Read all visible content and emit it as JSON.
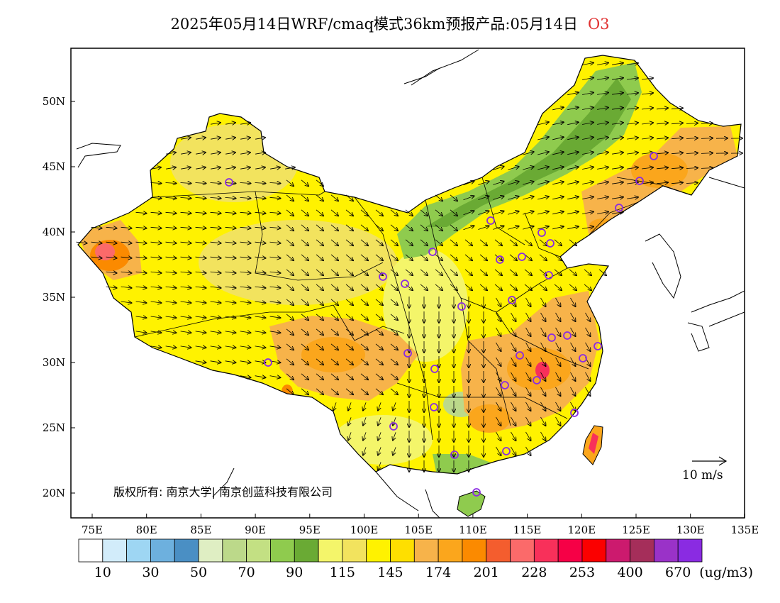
{
  "title": {
    "text": "2025年05月14日WRF/cmaq模式36km预报产品:05月14日",
    "pollutant": "O3"
  },
  "map": {
    "lat_ticks": [
      "20N",
      "25N",
      "30N",
      "35N",
      "40N",
      "45N",
      "50N"
    ],
    "lon_ticks": [
      "75E",
      "80E",
      "85E",
      "90E",
      "95E",
      "100E",
      "105E",
      "110E",
      "115E",
      "120E",
      "125E",
      "130E",
      "135E"
    ],
    "copyright": "版权所有: 南京大学| 南京创蓝科技有限公司",
    "wind_scale_label": "10  m/s"
  },
  "colorbar": {
    "unit": "(ug/m3)",
    "labels": [
      "10",
      "30",
      "50",
      "70",
      "90",
      "115",
      "145",
      "174",
      "201",
      "228",
      "253",
      "400",
      "670"
    ],
    "colors": [
      "#ffffff",
      "#d2ecfa",
      "#9ed6f3",
      "#6db0de",
      "#4a8fc4",
      "#dfeec3",
      "#bcd98a",
      "#c3e083",
      "#8fcb4e",
      "#6aaa34",
      "#f4f56a",
      "#f2e35e",
      "#fff200",
      "#fedf00",
      "#f7b34a",
      "#fba61c",
      "#fb8a00",
      "#f45d2e",
      "#fb6a6a",
      "#f8305a",
      "#f60046",
      "#fb0000",
      "#cc1a6e",
      "#a52e5a",
      "#9a32c8",
      "#8a2be2"
    ]
  }
}
